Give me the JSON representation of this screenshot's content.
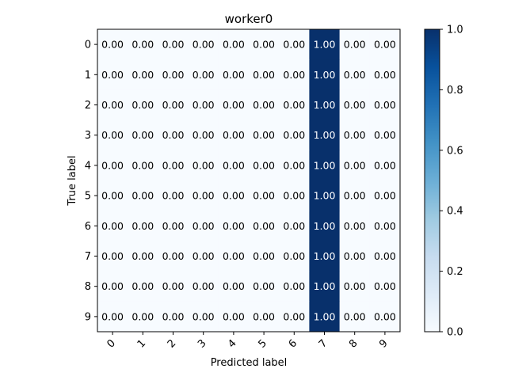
{
  "chart_data": {
    "type": "heatmap",
    "title": "worker0",
    "xlabel": "Predicted label",
    "ylabel": "True label",
    "x_categories": [
      "0",
      "1",
      "2",
      "3",
      "4",
      "5",
      "6",
      "7",
      "8",
      "9"
    ],
    "y_categories": [
      "0",
      "1",
      "2",
      "3",
      "4",
      "5",
      "6",
      "7",
      "8",
      "9"
    ],
    "values": [
      [
        0,
        0,
        0,
        0,
        0,
        0,
        0,
        1,
        0,
        0
      ],
      [
        0,
        0,
        0,
        0,
        0,
        0,
        0,
        1,
        0,
        0
      ],
      [
        0,
        0,
        0,
        0,
        0,
        0,
        0,
        1,
        0,
        0
      ],
      [
        0,
        0,
        0,
        0,
        0,
        0,
        0,
        1,
        0,
        0
      ],
      [
        0,
        0,
        0,
        0,
        0,
        0,
        0,
        1,
        0,
        0
      ],
      [
        0,
        0,
        0,
        0,
        0,
        0,
        0,
        1,
        0,
        0
      ],
      [
        0,
        0,
        0,
        0,
        0,
        0,
        0,
        1,
        0,
        0
      ],
      [
        0,
        0,
        0,
        0,
        0,
        0,
        0,
        1,
        0,
        0
      ],
      [
        0,
        0,
        0,
        0,
        0,
        0,
        0,
        1,
        0,
        0
      ],
      [
        0,
        0,
        0,
        0,
        0,
        0,
        0,
        1,
        0,
        0
      ]
    ],
    "value_format": "0.00",
    "colormap": "Blues",
    "color_low": "#f7fbff",
    "color_high": "#08306b",
    "colorbar": {
      "range": [
        0.0,
        1.0
      ],
      "ticks": [
        "0.0",
        "0.2",
        "0.4",
        "0.6",
        "0.8",
        "1.0"
      ]
    },
    "x_tick_rotation": "45 degrees",
    "grid": false,
    "legend": "colorbar at right"
  }
}
